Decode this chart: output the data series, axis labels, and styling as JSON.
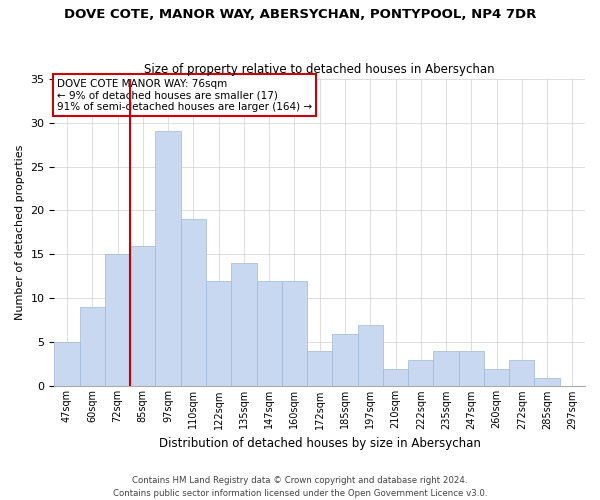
{
  "title": "DOVE COTE, MANOR WAY, ABERSYCHAN, PONTYPOOL, NP4 7DR",
  "subtitle": "Size of property relative to detached houses in Abersychan",
  "xlabel": "Distribution of detached houses by size in Abersychan",
  "ylabel": "Number of detached properties",
  "bar_labels": [
    "47sqm",
    "60sqm",
    "72sqm",
    "85sqm",
    "97sqm",
    "110sqm",
    "122sqm",
    "135sqm",
    "147sqm",
    "160sqm",
    "172sqm",
    "185sqm",
    "197sqm",
    "210sqm",
    "222sqm",
    "235sqm",
    "247sqm",
    "260sqm",
    "272sqm",
    "285sqm",
    "297sqm"
  ],
  "bar_values": [
    5,
    9,
    15,
    16,
    29,
    19,
    12,
    14,
    12,
    12,
    4,
    6,
    7,
    2,
    3,
    4,
    4,
    2,
    3,
    1,
    0
  ],
  "bar_color": "#c8d8f0",
  "bar_edge_color": "#a0b8d8",
  "vline_x": 2.5,
  "vline_color": "#cc0000",
  "ylim": [
    0,
    35
  ],
  "yticks": [
    0,
    5,
    10,
    15,
    20,
    25,
    30,
    35
  ],
  "annotation_text": "DOVE COTE MANOR WAY: 76sqm\n← 9% of detached houses are smaller (17)\n91% of semi-detached houses are larger (164) →",
  "annotation_box_color": "#ffffff",
  "annotation_box_edge": "#cc0000",
  "footer_line1": "Contains HM Land Registry data © Crown copyright and database right 2024.",
  "footer_line2": "Contains public sector information licensed under the Open Government Licence v3.0.",
  "background_color": "#ffffff",
  "grid_color": "#d0d0d0"
}
